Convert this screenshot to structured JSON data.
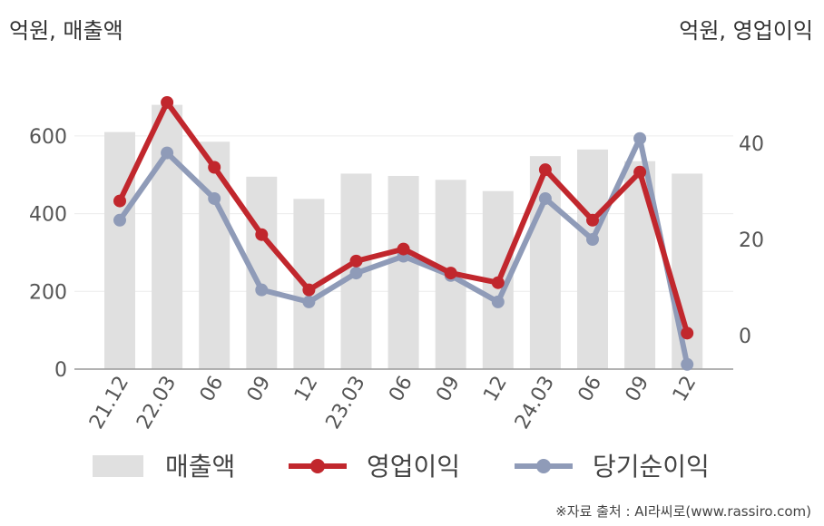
{
  "chart_data": {
    "type": "bar+line",
    "unit_left": "억원, 매출액",
    "unit_right": "억원, 영업이익",
    "categories": [
      "21.12",
      "22.03",
      "06",
      "09",
      "12",
      "23.03",
      "06",
      "09",
      "12",
      "24.03",
      "06",
      "09",
      "12"
    ],
    "y_left": {
      "range": [
        0,
        700
      ],
      "ticks": [
        0,
        200,
        400,
        600
      ]
    },
    "y_right": {
      "range": [
        -7,
        48
      ],
      "ticks": [
        0,
        20,
        40
      ]
    },
    "series": [
      {
        "name": "매출액",
        "type": "bar",
        "axis": "left",
        "color": "#e0e0e0",
        "values": [
          610,
          680,
          585,
          495,
          438,
          503,
          497,
          487,
          458,
          548,
          565,
          535,
          503
        ]
      },
      {
        "name": "영업이익",
        "type": "line",
        "axis": "right",
        "color": "#c1272d",
        "values": [
          28,
          48.5,
          35,
          21,
          9.5,
          15.5,
          18,
          13,
          11,
          34.5,
          24,
          34,
          0.5
        ]
      },
      {
        "name": "당기순이익",
        "type": "line",
        "axis": "right",
        "color": "#8f9bb8",
        "values": [
          24,
          38,
          28.5,
          9.5,
          7,
          13,
          16.5,
          12.5,
          7,
          28.5,
          20,
          41,
          -6
        ]
      }
    ],
    "grid": true,
    "legend_position": "bottom"
  },
  "source": "※자료 출처 : AI라씨로(www.rassiro.com)"
}
